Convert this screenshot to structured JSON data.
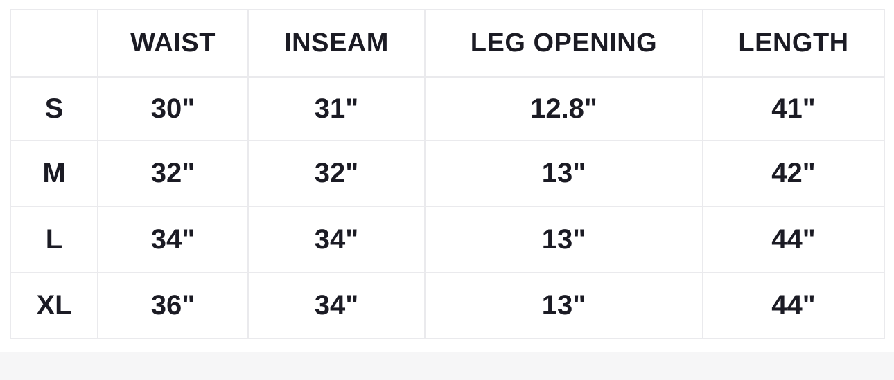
{
  "colors": {
    "text": "#1b1b24",
    "border": "#eaeaed",
    "band": "#f6f6f7",
    "background": "#ffffff"
  },
  "chart_data": {
    "type": "table",
    "columns": [
      "",
      "WAIST",
      "INSEAM",
      "LEG OPENING",
      "LENGTH"
    ],
    "rows": [
      [
        "S",
        "30\"",
        "31\"",
        "12.8\"",
        "41\""
      ],
      [
        "M",
        "32\"",
        "32\"",
        "13\"",
        "42\""
      ],
      [
        "L",
        "34\"",
        "34\"",
        "13\"",
        "44\""
      ],
      [
        "XL",
        "36\"",
        "34\"",
        "13\"",
        "44\""
      ]
    ],
    "layout_hints": {
      "grid": true,
      "header_row": true,
      "row_label_column": true
    }
  }
}
